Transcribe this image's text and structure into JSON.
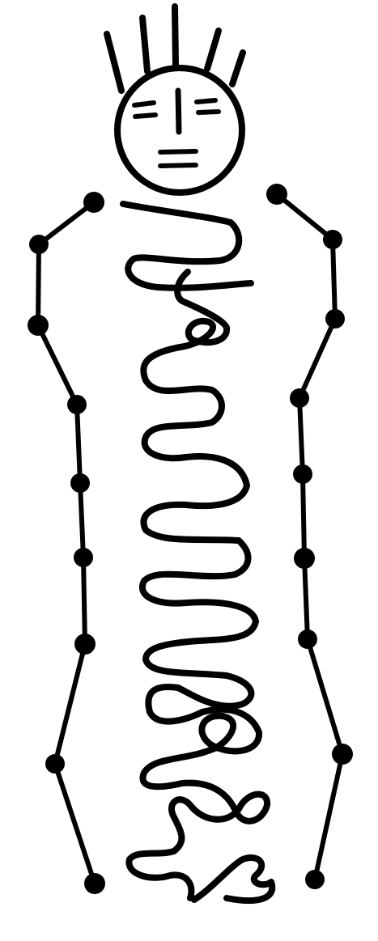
{
  "figure": {
    "subject": "shaman-petroglyph",
    "colors": {
      "ink": "#000000",
      "background": "#ffffff"
    }
  }
}
